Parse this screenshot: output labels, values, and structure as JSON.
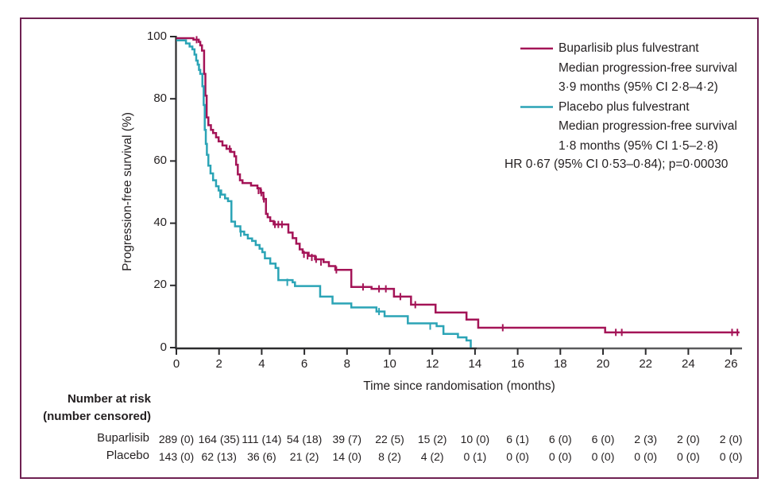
{
  "figure": {
    "colors": {
      "border": "#6f2152",
      "text": "#231f20",
      "axis": "#2b2b2d",
      "axis_light": "#5a5a5c"
    }
  },
  "chart_data": {
    "type": "line",
    "subtype": "kaplan-meier-step-survival",
    "title": "",
    "xlabel": "Time since randomisation (months)",
    "ylabel": "Progression-free survival (%)",
    "xlim": [
      0,
      26.8
    ],
    "ylim": [
      0,
      100
    ],
    "xticks": [
      0,
      2,
      4,
      6,
      8,
      10,
      12,
      14,
      16,
      18,
      20,
      22,
      24,
      26
    ],
    "yticks": [
      0,
      20,
      40,
      60,
      80,
      100
    ],
    "grid": false,
    "legend_position": "upper right",
    "annotation": "HR 0·67 (95% CI 0·53–0·84); p=0·00030",
    "series": [
      {
        "name": "Buparlisib plus fulvestrant",
        "color": "#a41457",
        "median_months": 3.9,
        "median_ci": "2·8–4·2",
        "end_time": 26.4,
        "steps": [
          [
            0,
            99.5
          ],
          [
            0.8,
            99.0
          ],
          [
            1.05,
            98.3
          ],
          [
            1.12,
            97.2
          ],
          [
            1.2,
            95.5
          ],
          [
            1.3,
            88.0
          ],
          [
            1.36,
            81.0
          ],
          [
            1.42,
            74.0
          ],
          [
            1.5,
            71.5
          ],
          [
            1.62,
            70.0
          ],
          [
            1.72,
            69.0
          ],
          [
            1.86,
            67.6
          ],
          [
            1.98,
            66.3
          ],
          [
            2.16,
            65.0
          ],
          [
            2.35,
            63.9
          ],
          [
            2.55,
            62.9
          ],
          [
            2.72,
            61.5
          ],
          [
            2.8,
            58.8
          ],
          [
            2.88,
            55.7
          ],
          [
            2.98,
            53.8
          ],
          [
            3.1,
            52.9
          ],
          [
            3.5,
            52.1
          ],
          [
            3.8,
            51.2
          ],
          [
            3.95,
            49.8
          ],
          [
            4.08,
            47.8
          ],
          [
            4.2,
            43.0
          ],
          [
            4.28,
            41.9
          ],
          [
            4.4,
            40.7
          ],
          [
            4.56,
            39.6
          ],
          [
            5.25,
            37.0
          ],
          [
            5.45,
            35.2
          ],
          [
            5.62,
            33.4
          ],
          [
            5.78,
            31.6
          ],
          [
            5.92,
            30.5
          ],
          [
            6.2,
            29.5
          ],
          [
            6.5,
            28.4
          ],
          [
            6.9,
            27.5
          ],
          [
            7.15,
            26.2
          ],
          [
            7.45,
            25.0
          ],
          [
            8.2,
            19.5
          ],
          [
            9.15,
            18.9
          ],
          [
            10.2,
            16.4
          ],
          [
            11.0,
            13.8
          ],
          [
            12.15,
            11.3
          ],
          [
            13.6,
            9.0
          ],
          [
            14.15,
            6.4
          ],
          [
            20.1,
            4.9
          ]
        ],
        "censor_marks": [
          [
            0.95,
            99.0
          ],
          [
            2.5,
            63.9
          ],
          [
            3.85,
            50.5
          ],
          [
            3.98,
            49.8
          ],
          [
            4.1,
            47.8
          ],
          [
            4.62,
            39.6
          ],
          [
            4.78,
            39.6
          ],
          [
            4.95,
            39.6
          ],
          [
            5.98,
            30.0
          ],
          [
            6.15,
            29.5
          ],
          [
            6.35,
            29.0
          ],
          [
            6.55,
            28.4
          ],
          [
            6.78,
            27.5
          ],
          [
            7.5,
            25.0
          ],
          [
            8.75,
            19.5
          ],
          [
            9.5,
            18.9
          ],
          [
            9.82,
            18.9
          ],
          [
            10.5,
            16.4
          ],
          [
            11.2,
            13.8
          ],
          [
            15.3,
            6.4
          ],
          [
            20.6,
            4.9
          ],
          [
            20.88,
            4.9
          ],
          [
            26.05,
            4.9
          ],
          [
            26.3,
            4.9
          ]
        ]
      },
      {
        "name": "Placebo plus fulvestrant",
        "color": "#2ba4b6",
        "median_months": 1.8,
        "median_ci": "1·5–2·8",
        "end_time": 13.8,
        "steps": [
          [
            0,
            98.8
          ],
          [
            0.45,
            97.8
          ],
          [
            0.62,
            96.8
          ],
          [
            0.75,
            95.9
          ],
          [
            0.85,
            94.2
          ],
          [
            0.93,
            92.3
          ],
          [
            1.0,
            91.0
          ],
          [
            1.06,
            89.3
          ],
          [
            1.12,
            88.0
          ],
          [
            1.22,
            84.0
          ],
          [
            1.28,
            78.0
          ],
          [
            1.33,
            70.0
          ],
          [
            1.38,
            65.5
          ],
          [
            1.43,
            62.0
          ],
          [
            1.5,
            58.5
          ],
          [
            1.6,
            56.0
          ],
          [
            1.72,
            53.8
          ],
          [
            1.86,
            51.9
          ],
          [
            1.98,
            50.5
          ],
          [
            2.1,
            49.2
          ],
          [
            2.28,
            48.0
          ],
          [
            2.42,
            47.1
          ],
          [
            2.58,
            40.5
          ],
          [
            2.75,
            39.0
          ],
          [
            3.0,
            37.3
          ],
          [
            3.18,
            36.3
          ],
          [
            3.35,
            35.1
          ],
          [
            3.55,
            34.3
          ],
          [
            3.72,
            33.0
          ],
          [
            3.9,
            31.8
          ],
          [
            4.03,
            30.7
          ],
          [
            4.15,
            28.7
          ],
          [
            4.4,
            27.0
          ],
          [
            4.65,
            25.6
          ],
          [
            4.78,
            21.7
          ],
          [
            5.45,
            21.0
          ],
          [
            5.56,
            19.8
          ],
          [
            6.74,
            16.4
          ],
          [
            7.32,
            14.2
          ],
          [
            8.2,
            12.9
          ],
          [
            9.38,
            11.6
          ],
          [
            9.76,
            10.1
          ],
          [
            10.85,
            7.8
          ],
          [
            12.2,
            6.9
          ],
          [
            12.52,
            4.4
          ],
          [
            13.2,
            3.3
          ],
          [
            13.6,
            2.3
          ],
          [
            13.8,
            0.0
          ]
        ],
        "censor_marks": [
          [
            2.05,
            49.2
          ],
          [
            3.02,
            36.8
          ],
          [
            5.2,
            21.0
          ],
          [
            9.5,
            11.6
          ],
          [
            11.9,
            6.9
          ]
        ]
      }
    ]
  },
  "legend": {
    "items": [
      {
        "label": "Buparlisib plus fulvestrant",
        "median_label": "Median progression-free survival",
        "ci_label": "3·9 months (95% CI 2·8–4·2)"
      },
      {
        "label": "Placebo plus fulvestrant",
        "median_label": "Median progression-free survival",
        "ci_label": "1·8 months (95% CI 1·5–2·8)"
      }
    ]
  },
  "risk_table": {
    "header_line1": "Number at risk",
    "header_line2": "(number censored)",
    "columns_months": [
      0,
      2,
      4,
      6,
      8,
      10,
      12,
      14,
      16,
      18,
      20,
      22,
      24,
      26
    ],
    "rows": [
      {
        "label": "Buparlisib",
        "values": [
          "289 (0)",
          "164 (35)",
          "111 (14)",
          "54 (18)",
          "39 (7)",
          "22 (5)",
          "15 (2)",
          "10 (0)",
          "6 (1)",
          "6 (0)",
          "6 (0)",
          "2 (3)",
          "2 (0)",
          "2 (0)"
        ]
      },
      {
        "label": "Placebo",
        "values": [
          "143 (0)",
          "62 (13)",
          "36 (6)",
          "21 (2)",
          "14 (0)",
          "8 (2)",
          "4 (2)",
          "0 (1)",
          "0 (0)",
          "0 (0)",
          "0 (0)",
          "0 (0)",
          "0 (0)",
          "0 (0)"
        ]
      }
    ]
  }
}
